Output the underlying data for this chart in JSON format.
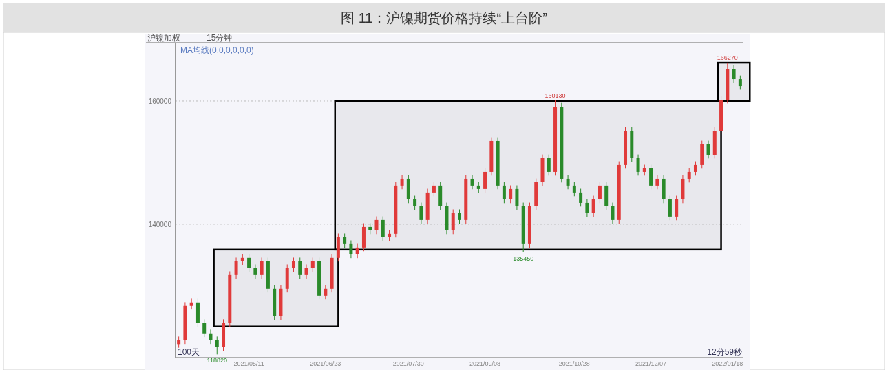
{
  "chart_data": {
    "type": "candlestick",
    "title": "图 11：沪镍期货价格持续“上台阶”",
    "categories": [
      null,
      null,
      null,
      null,
      null,
      null,
      null,
      null,
      null,
      null,
      null,
      "2021/05/11",
      null,
      null,
      null,
      null,
      null,
      null,
      null,
      null,
      null,
      null,
      null,
      "2021/06/23",
      null,
      null,
      null,
      null,
      null,
      null,
      null,
      null,
      null,
      null,
      null,
      null,
      "2021/07/30",
      null,
      null,
      null,
      null,
      null,
      null,
      null,
      null,
      null,
      null,
      null,
      "2021/09/08",
      null,
      null,
      null,
      null,
      null,
      null,
      null,
      null,
      null,
      null,
      null,
      null,
      null,
      "2021/10/28",
      null,
      null,
      null,
      null,
      null,
      null,
      null,
      null,
      null,
      null,
      null,
      "2021/12/07",
      null,
      null,
      null,
      null,
      null,
      null,
      null,
      null,
      null,
      null,
      null,
      "2022/01/18",
      null,
      null
    ],
    "ohlc": [
      [
        120500,
        121720,
        119900,
        121120
      ],
      [
        121120,
        127310,
        120520,
        126710
      ],
      [
        126710,
        127870,
        126110,
        127270
      ],
      [
        127270,
        127870,
        123320,
        123920
      ],
      [
        123920,
        124520,
        121640,
        122240
      ],
      [
        122240,
        122840,
        120520,
        121120
      ],
      [
        121120,
        121720,
        118820,
        120010
      ],
      [
        120010,
        124520,
        119410,
        123920
      ],
      [
        123920,
        132330,
        123320,
        131730
      ],
      [
        131730,
        134570,
        131130,
        133970
      ],
      [
        133970,
        135130,
        133370,
        134530
      ],
      [
        134530,
        135130,
        132250,
        132850
      ],
      [
        132850,
        133450,
        131130,
        131730
      ],
      [
        131730,
        134570,
        131130,
        133970
      ],
      [
        133970,
        134570,
        128900,
        129500
      ],
      [
        129500,
        130100,
        124430,
        125030
      ],
      [
        125030,
        130100,
        124430,
        129500
      ],
      [
        129500,
        133450,
        128900,
        132850
      ],
      [
        132850,
        134570,
        132250,
        133970
      ],
      [
        133970,
        134570,
        131130,
        131730
      ],
      [
        131730,
        133450,
        131130,
        132850
      ],
      [
        132850,
        134570,
        132250,
        133970
      ],
      [
        133970,
        134570,
        127780,
        128380
      ],
      [
        128380,
        130100,
        127780,
        129500
      ],
      [
        129500,
        135130,
        128900,
        134530
      ],
      [
        134530,
        138480,
        133930,
        137880
      ],
      [
        137880,
        138480,
        136160,
        136760
      ],
      [
        136760,
        137360,
        134490,
        135090
      ],
      [
        135090,
        136800,
        134490,
        136200
      ],
      [
        136200,
        140150,
        135600,
        139550
      ],
      [
        139550,
        140150,
        138390,
        138990
      ],
      [
        138990,
        141270,
        138390,
        140670
      ],
      [
        140670,
        141270,
        137280,
        137880
      ],
      [
        137880,
        139040,
        137280,
        138440
      ],
      [
        138440,
        146860,
        137840,
        146260
      ],
      [
        146260,
        147970,
        145660,
        147370
      ],
      [
        147370,
        147970,
        143420,
        144020
      ],
      [
        144020,
        144620,
        142300,
        142900
      ],
      [
        142900,
        143500,
        140070,
        140670
      ],
      [
        140670,
        145740,
        140070,
        145140
      ],
      [
        145140,
        146860,
        144540,
        146260
      ],
      [
        146260,
        146860,
        142300,
        142900
      ],
      [
        142900,
        143500,
        138390,
        138990
      ],
      [
        138990,
        142390,
        138390,
        141790
      ],
      [
        141790,
        142390,
        140070,
        140670
      ],
      [
        140670,
        147970,
        140070,
        147370
      ],
      [
        147370,
        147970,
        145660,
        146260
      ],
      [
        146260,
        146860,
        145100,
        145700
      ],
      [
        145700,
        149090,
        145100,
        148490
      ],
      [
        148490,
        154120,
        147890,
        153520
      ],
      [
        153520,
        154120,
        145660,
        146260
      ],
      [
        146260,
        146860,
        143420,
        144020
      ],
      [
        144020,
        146300,
        143420,
        145700
      ],
      [
        145700,
        146300,
        142300,
        142900
      ],
      [
        142900,
        143500,
        135450,
        136760
      ],
      [
        136760,
        143500,
        136160,
        142900
      ],
      [
        142900,
        147410,
        142300,
        146810
      ],
      [
        146810,
        151320,
        146210,
        150720
      ],
      [
        150720,
        151320,
        147890,
        148490
      ],
      [
        148490,
        160130,
        147890,
        159100
      ],
      [
        159100,
        159700,
        146770,
        147370
      ],
      [
        147370,
        147970,
        145660,
        146260
      ],
      [
        146260,
        146860,
        144540,
        145140
      ],
      [
        145140,
        145740,
        142860,
        143460
      ],
      [
        143460,
        144060,
        141190,
        141790
      ],
      [
        141790,
        144620,
        141190,
        144020
      ],
      [
        144020,
        146860,
        143420,
        146260
      ],
      [
        146260,
        146860,
        142300,
        142900
      ],
      [
        142900,
        143500,
        140070,
        140670
      ],
      [
        140670,
        150210,
        140070,
        149610
      ],
      [
        149610,
        155790,
        149010,
        155190
      ],
      [
        155190,
        155790,
        150120,
        150720
      ],
      [
        150720,
        151320,
        147890,
        148490
      ],
      [
        148490,
        149650,
        147890,
        149050
      ],
      [
        149050,
        149650,
        145660,
        146260
      ],
      [
        146260,
        147970,
        145660,
        147370
      ],
      [
        147370,
        147970,
        143420,
        144020
      ],
      [
        144020,
        144620,
        140630,
        141230
      ],
      [
        141230,
        144620,
        140630,
        144020
      ],
      [
        144020,
        147970,
        143420,
        147370
      ],
      [
        147370,
        149090,
        146770,
        148490
      ],
      [
        148490,
        150210,
        147890,
        149610
      ],
      [
        149610,
        153560,
        149010,
        152960
      ],
      [
        152960,
        153560,
        150680,
        151280
      ],
      [
        151280,
        155790,
        150680,
        155190
      ],
      [
        155190,
        160820,
        154590,
        160220
      ],
      [
        160220,
        166270,
        159620,
        165240
      ],
      [
        165240,
        165840,
        162970,
        163570
      ],
      [
        163570,
        164170,
        161850,
        162450
      ]
    ],
    "ylim": [
      118300,
      169500
    ],
    "yticks": [
      140000,
      160000
    ],
    "grid": "y",
    "bands": [
      {
        "axis": "y",
        "from": 123360,
        "to": 135870,
        "color": "#000000"
      },
      {
        "axis": "y",
        "from": 135870,
        "to": 160000,
        "color": "#000000"
      },
      {
        "axis": "y",
        "from": 160000,
        "to": 166250,
        "color": "#000000"
      }
    ],
    "annotations": [
      "沪镍加权",
      "15分钟",
      "MA均线(0,0,0,0,0,0)",
      "100天",
      "12分59秒",
      {
        "text": "118820",
        "y": 118820
      },
      {
        "text": "135450",
        "y": 135450
      },
      {
        "text": "160130",
        "y": 160130
      },
      {
        "text": "166270",
        "y": 166270
      }
    ]
  }
}
